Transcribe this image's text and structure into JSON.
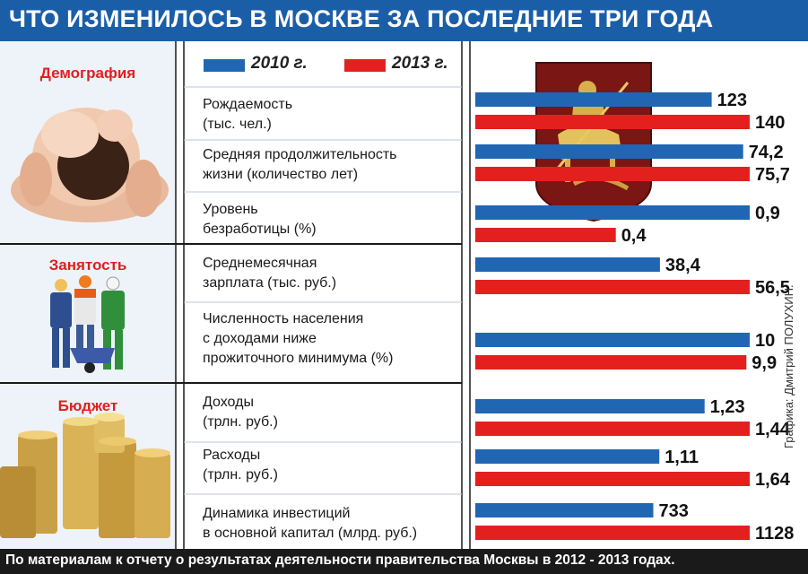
{
  "header": {
    "title": "ЧТО ИЗМЕНИЛОСЬ В МОСКВЕ ЗА ПОСЛЕДНИЕ ТРИ ГОДА"
  },
  "footer": {
    "source": "По материалам к отчету о результатах деятельности правительства Москвы в 2012 - 2013 годах."
  },
  "credit": "Графика: Дмитрий ПОЛУХИН.",
  "sections": [
    {
      "title": "Демография",
      "icon": "baby-in-hands-photo"
    },
    {
      "title": "Занятость",
      "icon": "workers-with-wheelbarrow-photo"
    },
    {
      "title": "Бюджет",
      "icon": "coin-stacks-photo"
    }
  ],
  "emblem": {
    "icon": "moscow-coat-of-arms-icon"
  },
  "colors": {
    "s2010": "#2166b3",
    "s2013": "#e4201f",
    "title_bg": "#1b5ea8",
    "section_title": "#e02020"
  },
  "chart_data": {
    "type": "bar",
    "orientation": "horizontal",
    "title": "ЧТО ИЗМЕНИЛОСЬ В МОСКВЕ ЗА ПОСЛЕДНИЕ ТРИ ГОДА",
    "series_names": [
      "2010 г.",
      "2013 г."
    ],
    "legend": "top",
    "rows": [
      {
        "section": "Демография",
        "lines": [
          "Рождаемость",
          "(тыс. чел.)"
        ],
        "labels": [
          "123",
          "140"
        ],
        "values": [
          123,
          140
        ]
      },
      {
        "section": "Демография",
        "lines": [
          "Средняя продолжительность",
          "жизни (количество лет)"
        ],
        "labels": [
          "74,2",
          "75,7"
        ],
        "values": [
          74.2,
          75.7
        ]
      },
      {
        "section": "Демография",
        "lines": [
          "Уровень",
          "безработицы (%)"
        ],
        "labels": [
          "0,9",
          "0,4"
        ],
        "values": [
          0.9,
          0.4
        ]
      },
      {
        "section": "Занятость",
        "lines": [
          "Среднемесячная",
          "зарплата (тыс. руб.)"
        ],
        "labels": [
          "38,4",
          "56,5"
        ],
        "values": [
          38.4,
          56.5
        ]
      },
      {
        "section": "Занятость",
        "lines": [
          "Численность населения",
          "с доходами ниже",
          "прожиточного минимума (%)"
        ],
        "labels": [
          "10",
          "9,9"
        ],
        "values": [
          10,
          9.9
        ]
      },
      {
        "section": "Бюджет",
        "lines": [
          "Доходы",
          "(трлн. руб.)"
        ],
        "labels": [
          "1,23",
          "1,44"
        ],
        "values": [
          1.23,
          1.44
        ]
      },
      {
        "section": "Бюджет",
        "lines": [
          "Расходы",
          "(трлн. руб.)"
        ],
        "labels": [
          "1,11",
          "1,64"
        ],
        "values": [
          1.11,
          1.64
        ]
      },
      {
        "section": "Бюджет",
        "lines": [
          "Динамика инвестиций",
          "в основной капитал (млрд. руб.)"
        ],
        "labels": [
          "733",
          "1128"
        ],
        "values": [
          733,
          1128
        ]
      }
    ]
  }
}
